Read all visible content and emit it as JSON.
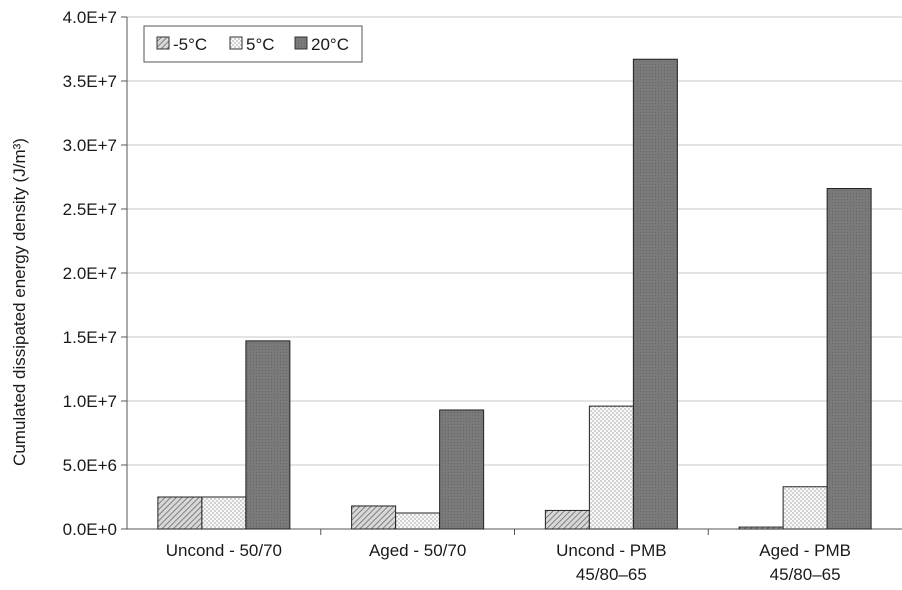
{
  "chart_data": {
    "type": "bar",
    "title": "",
    "xlabel": "",
    "ylabel": "Cumulated dissipated energy density (J/m³)",
    "ylim": [
      0,
      40000000
    ],
    "yticks": [
      0,
      5000000,
      10000000,
      15000000,
      20000000,
      25000000,
      30000000,
      35000000,
      40000000
    ],
    "ytick_labels": [
      "0.0E+0",
      "5.0E+6",
      "1.0E+7",
      "1.5E+7",
      "2.0E+7",
      "2.5E+7",
      "3.0E+7",
      "3.5E+7",
      "4.0E+7"
    ],
    "categories": [
      [
        "Uncond - 50/70"
      ],
      [
        "Aged - 50/70"
      ],
      [
        "Uncond - PMB",
        "45/80–65"
      ],
      [
        "Aged - PMB",
        "45/80–65"
      ]
    ],
    "series": [
      {
        "name": "-5°C",
        "pattern": "hatch",
        "values": [
          2500000,
          1800000,
          1450000,
          150000
        ]
      },
      {
        "name": "5°C",
        "pattern": "dots",
        "values": [
          2500000,
          1250000,
          9600000,
          3300000
        ]
      },
      {
        "name": "20°C",
        "pattern": "dark",
        "values": [
          14700000,
          9300000,
          36700000,
          26600000
        ]
      }
    ],
    "grid": true,
    "legend": "top-left"
  }
}
